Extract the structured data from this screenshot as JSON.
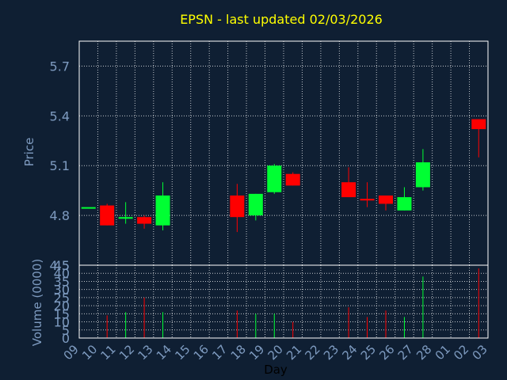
{
  "chart_data": {
    "type": "candlestick",
    "title": "EPSN - last updated 02/03/2026",
    "xlabel": "Day",
    "ylabel_price": "Price",
    "ylabel_volume": "Volume (0000)",
    "x_ticks": [
      "09",
      "10",
      "11",
      "12",
      "13",
      "14",
      "15",
      "16",
      "17",
      "18",
      "19",
      "20",
      "21",
      "22",
      "23",
      "24",
      "25",
      "26",
      "27",
      "28",
      "01",
      "02",
      "03"
    ],
    "price_ylim": [
      4.5,
      5.85
    ],
    "price_ticks": [
      "4.5",
      "4.8",
      "5.1",
      "5.4",
      "5.7"
    ],
    "volume_ylim": [
      0,
      45
    ],
    "volume_ticks": [
      "0",
      "5",
      "10",
      "15",
      "20",
      "25",
      "30",
      "35",
      "40",
      "45"
    ],
    "grid": true,
    "colors": {
      "up": "#00ff33",
      "down": "#ff0000",
      "background": "#0f1f33",
      "title": "#ffff00",
      "axis_text": "#7e9bc0",
      "frame": "#ffffff"
    },
    "candles": [
      {
        "day": "09",
        "open": 4.85,
        "high": 4.85,
        "low": 4.85,
        "close": 4.85,
        "volume": 0
      },
      {
        "day": "10",
        "open": 4.86,
        "high": 4.87,
        "low": 4.74,
        "close": 4.74,
        "volume": 14
      },
      {
        "day": "11",
        "open": 4.78,
        "high": 4.88,
        "low": 4.75,
        "close": 4.79,
        "volume": 16
      },
      {
        "day": "12",
        "open": 4.79,
        "high": 4.8,
        "low": 4.72,
        "close": 4.75,
        "volume": 25
      },
      {
        "day": "13",
        "open": 4.74,
        "high": 5.0,
        "low": 4.71,
        "close": 4.92,
        "volume": 16
      },
      {
        "day": "17",
        "open": 4.92,
        "high": 4.99,
        "low": 4.7,
        "close": 4.79,
        "volume": 17
      },
      {
        "day": "18",
        "open": 4.8,
        "high": 4.93,
        "low": 4.77,
        "close": 4.93,
        "volume": 15
      },
      {
        "day": "19",
        "open": 4.94,
        "high": 5.11,
        "low": 4.93,
        "close": 5.1,
        "volume": 15
      },
      {
        "day": "20",
        "open": 5.05,
        "high": 5.06,
        "low": 4.98,
        "close": 4.98,
        "volume": 10
      },
      {
        "day": "23",
        "open": 5.0,
        "high": 5.09,
        "low": 4.91,
        "close": 4.91,
        "volume": 19
      },
      {
        "day": "24",
        "open": 4.9,
        "high": 5.0,
        "low": 4.85,
        "close": 4.89,
        "volume": 13
      },
      {
        "day": "25",
        "open": 4.92,
        "high": 4.92,
        "low": 4.83,
        "close": 4.87,
        "volume": 17
      },
      {
        "day": "26",
        "open": 4.83,
        "high": 4.97,
        "low": 4.83,
        "close": 4.91,
        "volume": 13
      },
      {
        "day": "27",
        "open": 4.97,
        "high": 5.2,
        "low": 4.95,
        "close": 5.12,
        "volume": 38
      },
      {
        "day": "02",
        "open": 5.38,
        "high": 5.38,
        "low": 5.15,
        "close": 5.32,
        "volume": 43
      }
    ]
  }
}
